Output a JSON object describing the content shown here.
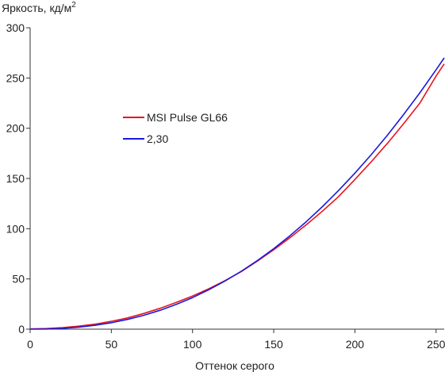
{
  "chart_data": {
    "type": "line",
    "ylabel_main": "Яркость, кд/м",
    "ylabel_sup": "2",
    "xlabel": "Оттенок серого",
    "xlim": [
      0,
      255
    ],
    "ylim": [
      0,
      300
    ],
    "xticks": [
      0,
      50,
      100,
      150,
      200,
      250
    ],
    "yticks": [
      0,
      50,
      100,
      150,
      200,
      250,
      300
    ],
    "grid": false,
    "legend_position": "middle-left",
    "series": [
      {
        "name": "MSI Pulse GL66",
        "color": "#e8141e",
        "x": [
          0,
          10,
          20,
          30,
          40,
          50,
          60,
          70,
          80,
          90,
          100,
          110,
          120,
          130,
          140,
          150,
          160,
          170,
          180,
          190,
          200,
          210,
          220,
          230,
          240,
          250,
          255
        ],
        "y": [
          0.2,
          0.6,
          1.5,
          3.0,
          5.0,
          7.8,
          11.2,
          15.6,
          20.8,
          26.6,
          33.0,
          40.2,
          48.3,
          57.3,
          67.8,
          79.0,
          91.0,
          103.8,
          117.5,
          132.0,
          149.0,
          166.5,
          185.0,
          204.5,
          225.0,
          252.0,
          264.0
        ]
      },
      {
        "name": "2,30",
        "color": "#1a1adc",
        "x": [
          0,
          10,
          20,
          30,
          40,
          50,
          60,
          70,
          80,
          90,
          100,
          110,
          120,
          130,
          140,
          150,
          160,
          170,
          180,
          190,
          200,
          210,
          220,
          230,
          240,
          250,
          255
        ],
        "y": [
          0,
          0.15,
          0.8,
          2.0,
          3.9,
          6.4,
          9.7,
          13.8,
          18.8,
          24.6,
          31.4,
          39.2,
          47.9,
          57.6,
          68.4,
          80.1,
          93.0,
          106.9,
          122.0,
          138.1,
          155.3,
          173.6,
          193.0,
          213.6,
          235.3,
          258.2,
          270.0
        ]
      }
    ]
  }
}
